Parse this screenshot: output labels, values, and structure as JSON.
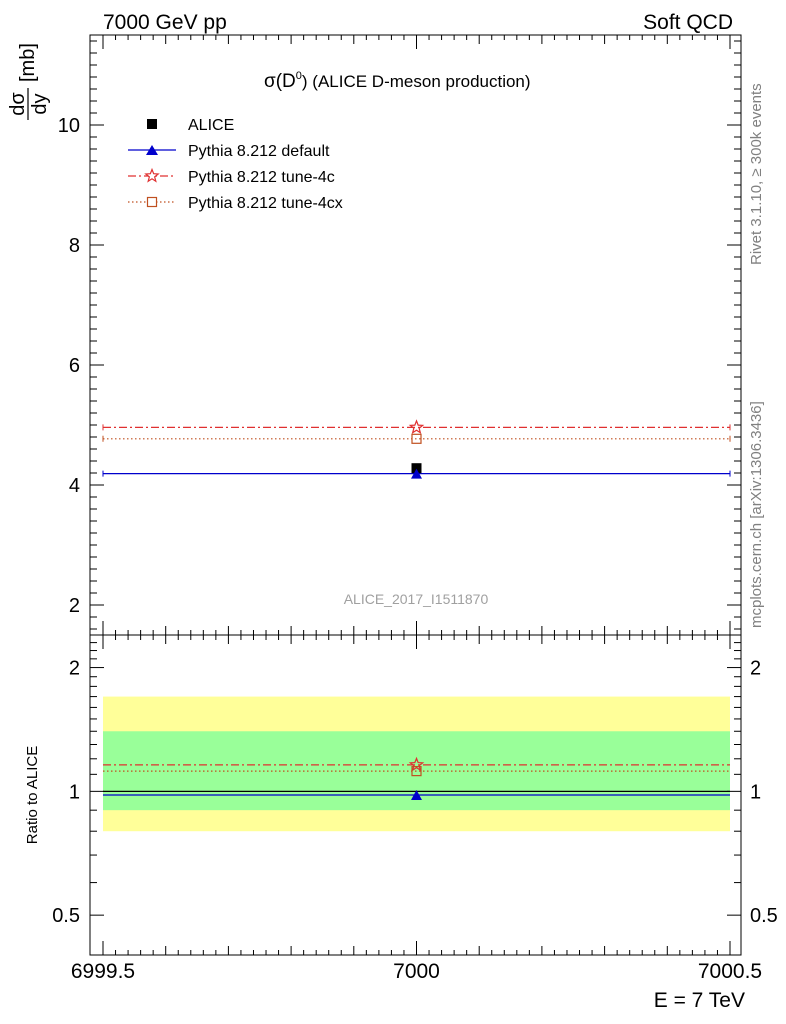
{
  "header": {
    "left": "7000 GeV pp",
    "right": "Soft QCD"
  },
  "side_labels": {
    "rivet": "Rivet 3.1.10, ≥ 300k events",
    "mcplots": "mcplots.cern.ch [arXiv:1306.3436]"
  },
  "chart_data": [
    {
      "type": "scatter",
      "title_prefix": "σ(D",
      "title_sup": "0",
      "title_suffix": ") (ALICE D-meson production)",
      "ylabel_num": "dσ",
      "ylabel_den": "dy",
      "ylabel_unit": "[mb]",
      "watermark": "ALICE_2017_I1511870",
      "xlim": [
        6999.5,
        7000.5
      ],
      "ylim": [
        1.5,
        11.5
      ],
      "yticks": [
        2,
        4,
        6,
        8,
        10
      ],
      "xticks": [
        6999.5,
        7000,
        7000.5
      ],
      "xtick_labels": [
        "6999.5",
        "7000",
        "7000.5"
      ],
      "legend_position": "top-left",
      "series": [
        {
          "name": "ALICE",
          "x": 7000,
          "y": 4.28,
          "xerr": [
            6999.5,
            7000.5
          ],
          "marker": "filled-square",
          "color": "#000000",
          "line": "none"
        },
        {
          "name": "Pythia 8.212 default",
          "x": 7000,
          "y": 4.19,
          "xerr": [
            6999.5,
            7000.5
          ],
          "marker": "filled-triangle",
          "color": "#0000cc",
          "line": "solid"
        },
        {
          "name": "Pythia 8.212 tune-4c",
          "x": 7000,
          "y": 4.96,
          "xerr": [
            6999.5,
            7000.5
          ],
          "marker": "open-star",
          "color": "#e03030",
          "line": "dash-dot"
        },
        {
          "name": "Pythia 8.212 tune-4cx",
          "x": 7000,
          "y": 4.77,
          "xerr": [
            6999.5,
            7000.5
          ],
          "marker": "open-square",
          "color": "#c05020",
          "line": "dotted"
        }
      ]
    },
    {
      "type": "scatter",
      "ylabel": "Ratio to ALICE",
      "xlabel": "E = 7 TeV",
      "scale": "log",
      "ylim": [
        0.4,
        2.4
      ],
      "yticks": [
        0.5,
        1,
        2
      ],
      "ytick_labels": [
        "0.5",
        "1",
        "2"
      ],
      "band_outer": [
        0.8,
        1.7
      ],
      "band_inner": [
        0.9,
        1.4
      ],
      "band_outer_color": "#ffff99",
      "band_inner_color": "#99ff99",
      "series": [
        {
          "name": "Pythia 8.212 default",
          "x": 7000,
          "y": 0.98
        },
        {
          "name": "Pythia 8.212 tune-4c",
          "x": 7000,
          "y": 1.16
        },
        {
          "name": "Pythia 8.212 tune-4cx",
          "x": 7000,
          "y": 1.12
        }
      ]
    }
  ]
}
